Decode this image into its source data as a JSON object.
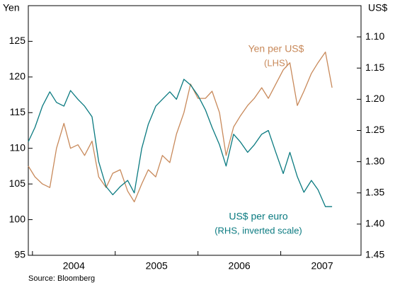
{
  "chart_data": {
    "type": "line",
    "y_axis_label": "Yen",
    "y2_axis_label": "US$",
    "source": "Source: Bloomberg",
    "annotations": [
      {
        "text": "Yen per US$",
        "color": "#c8895a"
      },
      {
        "text": "(LHS)",
        "color": "#c8895a"
      },
      {
        "text": "US$ per euro",
        "color": "#0a7a80"
      },
      {
        "text": "(RHS, inverted scale)",
        "color": "#0a7a80"
      }
    ],
    "x": [
      2003.95,
      2004.03,
      2004.12,
      2004.21,
      2004.29,
      2004.38,
      2004.46,
      2004.55,
      2004.63,
      2004.72,
      2004.8,
      2004.89,
      2004.97,
      2005.06,
      2005.15,
      2005.23,
      2005.32,
      2005.4,
      2005.49,
      2005.57,
      2005.66,
      2005.74,
      2005.83,
      2005.91,
      2006.0,
      2006.09,
      2006.17,
      2006.26,
      2006.34,
      2006.43,
      2006.51,
      2006.6,
      2006.68,
      2006.77,
      2006.85,
      2006.94,
      2007.03,
      2007.11,
      2007.2,
      2007.28,
      2007.37,
      2007.45,
      2007.54,
      2007.62
    ],
    "xlim": [
      2003.95,
      2007.97
    ],
    "xticks": [
      2004,
      2005,
      2006,
      2007
    ],
    "ylim": [
      95,
      130
    ],
    "yticks": [
      95,
      100,
      105,
      110,
      115,
      120,
      125
    ],
    "y2lim": [
      1.45,
      1.05
    ],
    "y2ticks": [
      {
        "value": 1.1,
        "label": "1.10"
      },
      1.15,
      {
        "value": 1.2,
        "label": "1.20"
      },
      1.25,
      {
        "value": 1.3,
        "label": "1.30"
      },
      1.35,
      {
        "value": 1.4,
        "label": "1.40"
      },
      1.45
    ],
    "series": [
      {
        "name": "Yen per US$",
        "color": "#c8895a",
        "values": [
          107.5,
          106,
          105,
          104.5,
          110,
          113.5,
          110,
          110.5,
          109,
          111,
          106,
          104.5,
          106.5,
          107,
          104,
          102.5,
          105,
          107,
          106,
          109,
          108,
          112,
          115,
          119,
          117,
          117,
          118,
          115,
          109,
          113,
          114.5,
          116,
          117,
          118.5,
          117,
          119,
          121,
          122,
          116,
          118,
          120.5,
          122,
          123.5,
          118.5
        ]
      },
      {
        "name": "US$ per euro",
        "color": "#0a7a80",
        "axis": "y2",
        "values": [
          1.268,
          1.245,
          1.211,
          1.188,
          1.205,
          1.211,
          1.186,
          1.2,
          1.211,
          1.228,
          1.3,
          1.34,
          1.353,
          1.34,
          1.33,
          1.35,
          1.279,
          1.24,
          1.211,
          1.2,
          1.188,
          1.2,
          1.168,
          1.177,
          1.194,
          1.217,
          1.245,
          1.273,
          1.307,
          1.256,
          1.268,
          1.285,
          1.273,
          1.256,
          1.25,
          1.285,
          1.319,
          1.285,
          1.324,
          1.349,
          1.33,
          1.345,
          1.372,
          1.372
        ]
      }
    ]
  }
}
